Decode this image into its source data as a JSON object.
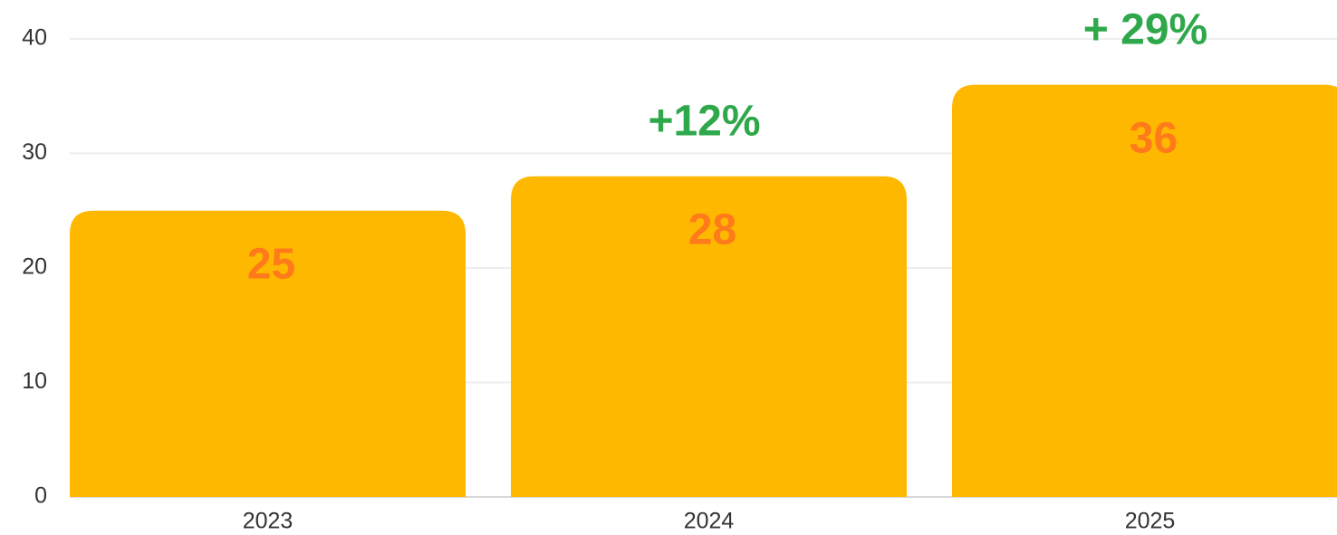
{
  "chart_data": {
    "type": "bar",
    "categories": [
      "2023",
      "2024",
      "2025"
    ],
    "values": [
      25,
      28,
      36
    ],
    "color": "#ffb800",
    "value_label_color": "#ff7a1a",
    "annotations": [
      {
        "text": "+12%",
        "category": "2024",
        "color": "#2ea84a"
      },
      {
        "text": "+ 29%",
        "category": "2025",
        "color": "#2ea84a"
      }
    ],
    "ylim": [
      0,
      40
    ],
    "yticks": [
      0,
      10,
      20,
      30,
      40
    ],
    "grid": true
  }
}
